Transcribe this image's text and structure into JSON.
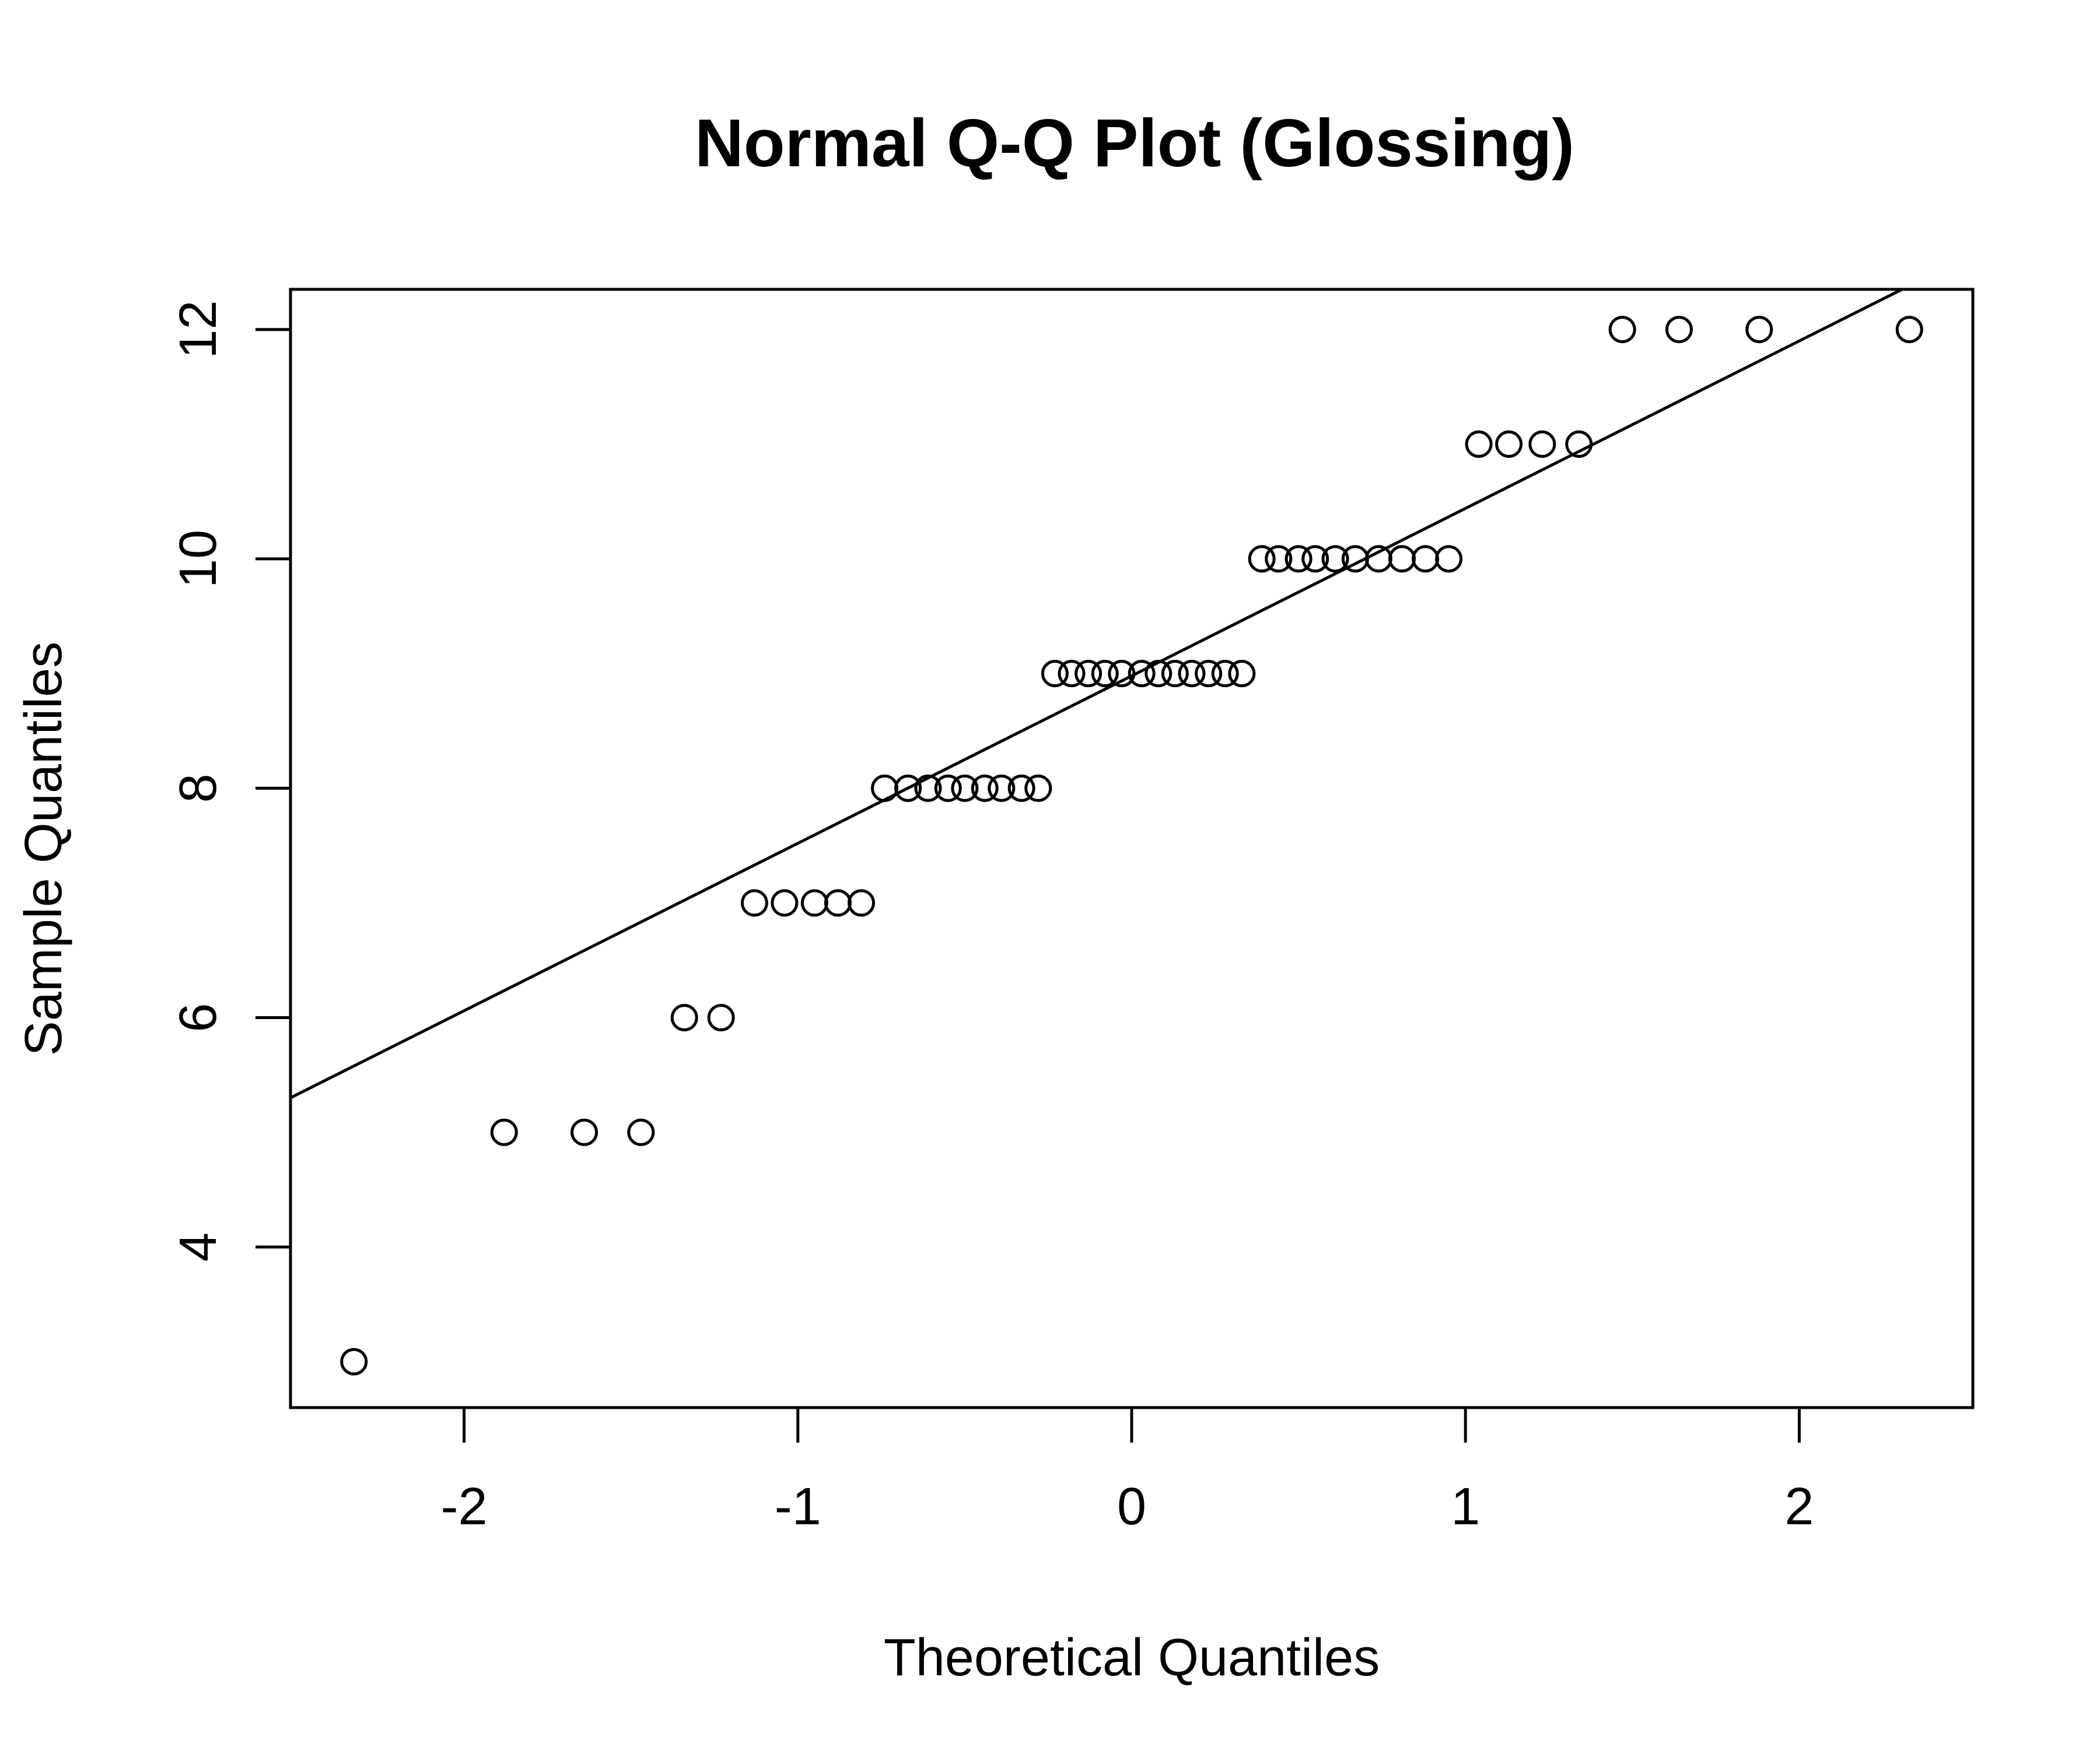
{
  "chart_data": {
    "type": "scatter",
    "title": "Normal Q-Q Plot (Glossing)",
    "xlabel": "Theoretical Quantiles",
    "ylabel": "Sample Quantiles",
    "xlim": [
      -2.52,
      2.52
    ],
    "ylim": [
      2.6,
      12.35
    ],
    "x_ticks": [
      -2,
      -1,
      0,
      1,
      2
    ],
    "x_tick_labels": [
      "-2",
      "-1",
      "0",
      "1",
      "2"
    ],
    "y_ticks": [
      4,
      6,
      8,
      10,
      12
    ],
    "y_tick_labels": [
      "4",
      "6",
      "8",
      "10",
      "12"
    ],
    "grid": false,
    "legend": "none",
    "reference_line": {
      "intercept": 8.98,
      "slope": 1.46
    },
    "points": [
      {
        "x": -2.33,
        "y": 3
      },
      {
        "x": -1.88,
        "y": 5
      },
      {
        "x": -1.64,
        "y": 5
      },
      {
        "x": -1.47,
        "y": 5
      },
      {
        "x": -1.34,
        "y": 6
      },
      {
        "x": -1.23,
        "y": 6
      },
      {
        "x": -1.13,
        "y": 7
      },
      {
        "x": -1.04,
        "y": 7
      },
      {
        "x": -0.95,
        "y": 7
      },
      {
        "x": -0.88,
        "y": 7
      },
      {
        "x": -0.81,
        "y": 7
      },
      {
        "x": -0.74,
        "y": 8
      },
      {
        "x": -0.67,
        "y": 8
      },
      {
        "x": -0.61,
        "y": 8
      },
      {
        "x": -0.55,
        "y": 8
      },
      {
        "x": -0.5,
        "y": 8
      },
      {
        "x": -0.44,
        "y": 8
      },
      {
        "x": -0.39,
        "y": 8
      },
      {
        "x": -0.33,
        "y": 8
      },
      {
        "x": -0.28,
        "y": 8
      },
      {
        "x": -0.23,
        "y": 9
      },
      {
        "x": -0.18,
        "y": 9
      },
      {
        "x": -0.13,
        "y": 9
      },
      {
        "x": -0.08,
        "y": 9
      },
      {
        "x": -0.03,
        "y": 9
      },
      {
        "x": 0.03,
        "y": 9
      },
      {
        "x": 0.08,
        "y": 9
      },
      {
        "x": 0.13,
        "y": 9
      },
      {
        "x": 0.18,
        "y": 9
      },
      {
        "x": 0.23,
        "y": 9
      },
      {
        "x": 0.28,
        "y": 9
      },
      {
        "x": 0.33,
        "y": 9
      },
      {
        "x": 0.39,
        "y": 10
      },
      {
        "x": 0.44,
        "y": 10
      },
      {
        "x": 0.5,
        "y": 10
      },
      {
        "x": 0.55,
        "y": 10
      },
      {
        "x": 0.61,
        "y": 10
      },
      {
        "x": 0.67,
        "y": 10
      },
      {
        "x": 0.74,
        "y": 10
      },
      {
        "x": 0.81,
        "y": 10
      },
      {
        "x": 0.88,
        "y": 10
      },
      {
        "x": 0.95,
        "y": 10
      },
      {
        "x": 1.04,
        "y": 11
      },
      {
        "x": 1.13,
        "y": 11
      },
      {
        "x": 1.23,
        "y": 11
      },
      {
        "x": 1.34,
        "y": 11
      },
      {
        "x": 1.47,
        "y": 12
      },
      {
        "x": 1.64,
        "y": 12
      },
      {
        "x": 1.88,
        "y": 12
      },
      {
        "x": 2.33,
        "y": 12
      }
    ]
  }
}
